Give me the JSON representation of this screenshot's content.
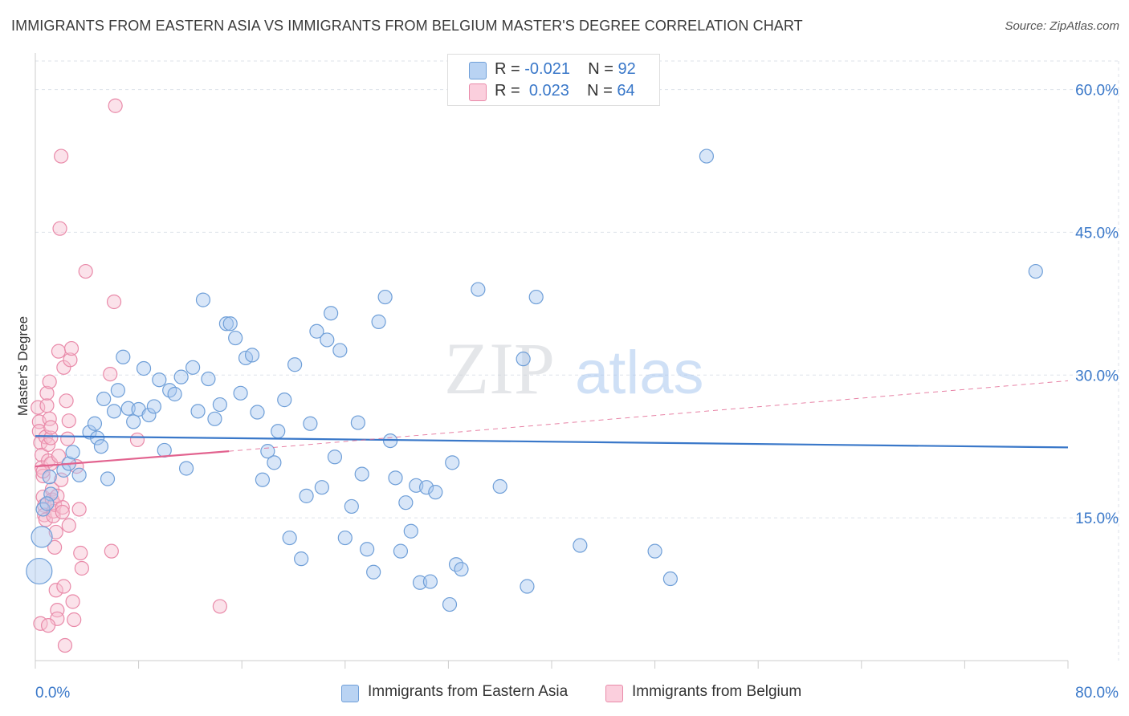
{
  "title": "IMMIGRANTS FROM EASTERN ASIA VS IMMIGRANTS FROM BELGIUM MASTER'S DEGREE CORRELATION CHART",
  "source": "Source: ZipAtlas.com",
  "watermark": {
    "zip": "ZIP",
    "atlas": "atlas"
  },
  "legend": {
    "rows": [
      {
        "r_label": "R =",
        "r_value": "-0.021",
        "n_label": "N =",
        "n_value": "92"
      },
      {
        "r_label": "R =",
        "r_value": "0.023",
        "n_label": "N =",
        "n_value": "64"
      }
    ]
  },
  "colors": {
    "blue_fill": "#a9c8ef",
    "blue_stroke": "#6f9fd8",
    "blue_line": "#3a78c9",
    "pink_fill": "#f7bed0",
    "pink_stroke": "#e98aa9",
    "pink_line": "#e2638f",
    "axis_text": "#3a78c9",
    "grid": "#dde2ea"
  },
  "chart_data": {
    "type": "scatter",
    "title": "IMMIGRANTS FROM EASTERN ASIA VS IMMIGRANTS FROM BELGIUM MASTER'S DEGREE CORRELATION CHART",
    "xlabel": "",
    "ylabel": "Master's Degree",
    "xlim": [
      0,
      80
    ],
    "ylim": [
      0,
      63
    ],
    "x_tick_labels": [
      "0.0%",
      "80.0%"
    ],
    "y_ticks": [
      15,
      30,
      45,
      60
    ],
    "y_tick_labels": [
      "15.0%",
      "30.0%",
      "45.0%",
      "60.0%"
    ],
    "grid": true,
    "legend_position": "top-center",
    "series": [
      {
        "name": "Immigrants from Eastern Asia",
        "R": -0.021,
        "N": 92,
        "trend": {
          "x": [
            0,
            80
          ],
          "y": [
            23.6,
            22.4
          ]
        },
        "points": [
          [
            0.3,
            9.4
          ],
          [
            0.5,
            13.0
          ],
          [
            0.6,
            15.9
          ],
          [
            1.2,
            17.5
          ],
          [
            1.1,
            19.3
          ],
          [
            2.2,
            20.0
          ],
          [
            2.6,
            20.7
          ],
          [
            2.9,
            21.9
          ],
          [
            3.4,
            19.5
          ],
          [
            4.2,
            24.0
          ],
          [
            4.6,
            24.9
          ],
          [
            4.8,
            23.4
          ],
          [
            5.1,
            22.5
          ],
          [
            5.3,
            27.5
          ],
          [
            5.6,
            19.1
          ],
          [
            6.1,
            26.2
          ],
          [
            6.4,
            28.4
          ],
          [
            6.8,
            31.9
          ],
          [
            7.2,
            26.5
          ],
          [
            7.6,
            25.1
          ],
          [
            8.0,
            26.4
          ],
          [
            8.4,
            30.7
          ],
          [
            8.8,
            25.8
          ],
          [
            9.2,
            26.7
          ],
          [
            9.6,
            29.5
          ],
          [
            10.0,
            22.1
          ],
          [
            10.4,
            28.4
          ],
          [
            10.8,
            28.0
          ],
          [
            11.3,
            29.8
          ],
          [
            11.7,
            20.2
          ],
          [
            12.2,
            30.8
          ],
          [
            12.6,
            26.2
          ],
          [
            13.0,
            37.9
          ],
          [
            13.4,
            29.6
          ],
          [
            13.9,
            25.4
          ],
          [
            14.3,
            26.9
          ],
          [
            14.8,
            35.4
          ],
          [
            15.1,
            35.4
          ],
          [
            15.5,
            33.9
          ],
          [
            15.9,
            28.1
          ],
          [
            16.3,
            31.8
          ],
          [
            16.8,
            32.1
          ],
          [
            17.2,
            26.1
          ],
          [
            17.6,
            19.0
          ],
          [
            18.0,
            22.0
          ],
          [
            18.5,
            20.8
          ],
          [
            18.8,
            24.1
          ],
          [
            19.3,
            27.4
          ],
          [
            19.7,
            12.9
          ],
          [
            20.1,
            31.1
          ],
          [
            20.6,
            10.7
          ],
          [
            21.0,
            17.3
          ],
          [
            21.3,
            24.9
          ],
          [
            21.8,
            34.6
          ],
          [
            22.2,
            18.2
          ],
          [
            22.6,
            33.7
          ],
          [
            22.9,
            36.5
          ],
          [
            23.2,
            21.4
          ],
          [
            23.6,
            32.6
          ],
          [
            24.0,
            12.9
          ],
          [
            24.5,
            16.2
          ],
          [
            25.0,
            25.0
          ],
          [
            25.3,
            19.6
          ],
          [
            25.7,
            11.7
          ],
          [
            26.2,
            9.3
          ],
          [
            26.6,
            35.6
          ],
          [
            27.1,
            38.2
          ],
          [
            27.5,
            23.1
          ],
          [
            27.9,
            19.2
          ],
          [
            28.3,
            11.5
          ],
          [
            28.7,
            16.6
          ],
          [
            29.1,
            13.6
          ],
          [
            29.5,
            18.4
          ],
          [
            29.8,
            8.2
          ],
          [
            30.3,
            18.2
          ],
          [
            30.6,
            8.3
          ],
          [
            31.0,
            17.7
          ],
          [
            32.1,
            5.9
          ],
          [
            32.3,
            20.8
          ],
          [
            32.6,
            10.1
          ],
          [
            33.0,
            9.6
          ],
          [
            34.3,
            39.0
          ],
          [
            36.0,
            18.3
          ],
          [
            37.8,
            31.7
          ],
          [
            38.1,
            7.8
          ],
          [
            38.8,
            38.2
          ],
          [
            42.2,
            12.1
          ],
          [
            48.0,
            11.5
          ],
          [
            49.2,
            8.6
          ],
          [
            52.0,
            53.0
          ],
          [
            77.5,
            40.9
          ],
          [
            0.9,
            16.5
          ]
        ]
      },
      {
        "name": "Immigrants from Belgium",
        "R": 0.023,
        "N": 64,
        "trend": {
          "x": [
            0,
            15
          ],
          "y": [
            20.4,
            22.0
          ]
        },
        "trend_extended": {
          "x": [
            15,
            80
          ],
          "y": [
            22.0,
            29.4
          ]
        },
        "points": [
          [
            0.2,
            26.6
          ],
          [
            0.3,
            25.1
          ],
          [
            0.3,
            24.1
          ],
          [
            0.4,
            22.9
          ],
          [
            0.5,
            21.6
          ],
          [
            0.5,
            20.3
          ],
          [
            0.6,
            19.4
          ],
          [
            0.6,
            17.2
          ],
          [
            0.7,
            16.3
          ],
          [
            0.7,
            15.3
          ],
          [
            0.8,
            14.8
          ],
          [
            0.8,
            23.5
          ],
          [
            0.9,
            26.8
          ],
          [
            0.9,
            28.1
          ],
          [
            1.0,
            21.0
          ],
          [
            1.0,
            22.7
          ],
          [
            1.1,
            25.4
          ],
          [
            1.1,
            29.3
          ],
          [
            1.2,
            23.4
          ],
          [
            1.2,
            20.7
          ],
          [
            1.3,
            18.0
          ],
          [
            1.3,
            16.9
          ],
          [
            1.4,
            15.7
          ],
          [
            1.4,
            15.2
          ],
          [
            1.5,
            16.4
          ],
          [
            1.5,
            11.9
          ],
          [
            1.6,
            13.5
          ],
          [
            1.6,
            7.4
          ],
          [
            1.7,
            5.3
          ],
          [
            1.7,
            4.4
          ],
          [
            1.8,
            21.5
          ],
          [
            1.8,
            32.5
          ],
          [
            1.9,
            45.4
          ],
          [
            2.0,
            53.0
          ],
          [
            2.1,
            16.1
          ],
          [
            2.1,
            15.6
          ],
          [
            2.2,
            30.8
          ],
          [
            2.2,
            7.8
          ],
          [
            2.3,
            1.6
          ],
          [
            2.4,
            27.3
          ],
          [
            2.5,
            23.3
          ],
          [
            2.6,
            25.2
          ],
          [
            2.7,
            31.6
          ],
          [
            2.8,
            32.8
          ],
          [
            2.9,
            6.2
          ],
          [
            3.0,
            4.3
          ],
          [
            3.2,
            20.4
          ],
          [
            3.4,
            15.9
          ],
          [
            3.5,
            11.3
          ],
          [
            3.6,
            9.7
          ],
          [
            3.9,
            40.9
          ],
          [
            5.8,
            30.1
          ],
          [
            5.9,
            11.5
          ],
          [
            6.1,
            37.7
          ],
          [
            6.2,
            58.3
          ],
          [
            7.9,
            23.2
          ],
          [
            14.3,
            5.7
          ],
          [
            0.4,
            3.9
          ],
          [
            1.0,
            3.7
          ],
          [
            0.6,
            19.9
          ],
          [
            1.2,
            24.5
          ],
          [
            1.7,
            17.3
          ],
          [
            2.0,
            19.0
          ],
          [
            2.6,
            14.2
          ]
        ]
      }
    ]
  },
  "axis": {
    "ylabel": "Master's Degree",
    "x_left": "0.0%",
    "x_right": "80.0%"
  },
  "bottom_legend": [
    "Immigrants from Eastern Asia",
    "Immigrants from Belgium"
  ]
}
